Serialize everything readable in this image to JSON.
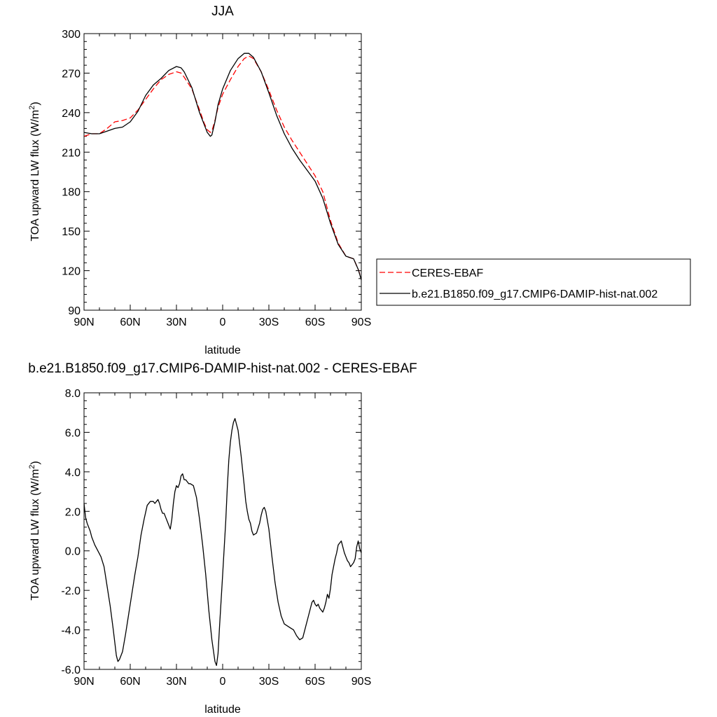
{
  "chart_data": [
    {
      "type": "line",
      "title": "JJA",
      "xlabel": "latitude",
      "ylabel": "TOA upward LW flux (W/m²)",
      "ylabel_main": "TOA upward LW flux (W/m",
      "ylabel_sup": "2",
      "ylabel_close": ")",
      "xlim": [
        90,
        -90
      ],
      "ylim": [
        90,
        300
      ],
      "x_ticks": [
        90,
        60,
        30,
        0,
        -30,
        -60,
        -90
      ],
      "x_tick_labels": [
        "90N",
        "60N",
        "30N",
        "0",
        "30S",
        "60S",
        "90S"
      ],
      "y_ticks": [
        90,
        120,
        150,
        180,
        210,
        240,
        270,
        300
      ],
      "y_tick_labels": [
        "90",
        "120",
        "150",
        "180",
        "210",
        "240",
        "270",
        "300"
      ],
      "legend_position": "right",
      "series": [
        {
          "name": "CERES-EBAF",
          "color": "#ff0000",
          "dash": "dashed",
          "x": [
            90,
            85,
            80,
            75,
            70,
            65,
            60,
            55,
            50,
            45,
            40,
            35,
            30,
            27,
            25,
            20,
            15,
            12,
            10,
            8,
            7,
            5,
            3,
            0,
            -5,
            -10,
            -14,
            -17,
            -20,
            -25,
            -30,
            -35,
            -40,
            -45,
            -50,
            -55,
            -60,
            -65,
            -70,
            -75,
            -80,
            -85,
            -88,
            -90
          ],
          "y": [
            222,
            224,
            224,
            228,
            233,
            234,
            236,
            242,
            250,
            258,
            265,
            269,
            271,
            270,
            267,
            258,
            242,
            232,
            227,
            225,
            226,
            234,
            244,
            254,
            265,
            275,
            281,
            283,
            281,
            271,
            257,
            242,
            229,
            219,
            210,
            201,
            192,
            180,
            158,
            141,
            131,
            129,
            121,
            114
          ]
        },
        {
          "name": "b.e21.B1850.f09_g17.CMIP6-DAMIP-hist-nat.002",
          "color": "#000000",
          "dash": "solid",
          "x": [
            90,
            85,
            80,
            75,
            70,
            65,
            60,
            55,
            50,
            45,
            40,
            35,
            30,
            27,
            25,
            20,
            15,
            12,
            10,
            8,
            7,
            5,
            3,
            0,
            -5,
            -10,
            -14,
            -17,
            -20,
            -25,
            -30,
            -35,
            -40,
            -45,
            -50,
            -55,
            -60,
            -65,
            -70,
            -75,
            -80,
            -85,
            -88,
            -90
          ],
          "y": [
            225,
            224,
            224,
            226,
            228,
            229,
            233,
            241,
            253,
            261,
            266,
            272,
            275,
            274,
            271,
            259,
            240,
            231,
            225,
            222,
            223,
            233,
            246,
            258,
            272,
            281,
            285,
            285,
            282,
            271,
            255,
            238,
            224,
            213,
            204,
            196,
            188,
            175,
            156,
            140,
            131,
            129,
            121,
            113
          ]
        }
      ]
    },
    {
      "type": "line",
      "title": "b.e21.B1850.f09_g17.CMIP6-DAMIP-hist-nat.002 - CERES-EBAF",
      "xlabel": "latitude",
      "ylabel": "TOA upward LW flux (W/m²)",
      "ylabel_main": "TOA upward LW flux (W/m",
      "ylabel_sup": "2",
      "ylabel_close": ")",
      "xlim": [
        90,
        -90
      ],
      "ylim": [
        -6,
        8
      ],
      "x_ticks": [
        90,
        60,
        30,
        0,
        -30,
        -60,
        -90
      ],
      "x_tick_labels": [
        "90N",
        "60N",
        "30N",
        "0",
        "30S",
        "60S",
        "90S"
      ],
      "y_ticks": [
        -6,
        -4,
        -2,
        0,
        2,
        4,
        6,
        8
      ],
      "y_tick_labels": [
        "-6.0",
        "-4.0",
        "-2.0",
        "0.0",
        "2.0",
        "4.0",
        "6.0",
        "8.0"
      ],
      "series": [
        {
          "color": "#000000",
          "dash": "solid",
          "x": [
            90,
            89,
            88,
            87,
            86,
            85,
            83,
            81,
            79,
            77,
            75,
            73,
            71,
            69,
            68,
            67,
            65,
            63,
            61,
            59,
            57,
            55,
            53,
            51,
            49,
            47,
            45,
            44,
            43,
            42,
            41,
            40,
            39,
            38,
            37,
            36,
            35,
            34,
            33,
            32,
            31,
            30,
            29,
            28,
            27,
            26,
            25,
            24,
            23,
            22,
            21,
            19,
            17,
            15,
            13,
            11,
            9,
            7,
            5,
            4,
            3,
            2,
            0,
            -2,
            -3,
            -4,
            -5,
            -6,
            -7,
            -8,
            -10,
            -12,
            -14,
            -15,
            -16,
            -17,
            -18,
            -19,
            -20,
            -22,
            -24,
            -25,
            -26,
            -27,
            -28,
            -30,
            -32,
            -34,
            -36,
            -38,
            -40,
            -42,
            -44,
            -46,
            -48,
            -50,
            -52,
            -54,
            -55,
            -56,
            -57,
            -58,
            -59,
            -60,
            -61,
            -62,
            -63,
            -64,
            -65,
            -66,
            -67,
            -68,
            -69,
            -70,
            -71,
            -72,
            -73,
            -74,
            -75,
            -76,
            -77,
            -78,
            -79,
            -80,
            -81,
            -82,
            -83,
            -84,
            -85,
            -86,
            -87,
            -88,
            -89,
            -90
          ],
          "y": [
            2.4,
            1.7,
            1.4,
            1.2,
            1.0,
            0.7,
            0.3,
            0.0,
            -0.3,
            -0.8,
            -1.8,
            -2.8,
            -4.0,
            -5.3,
            -5.6,
            -5.5,
            -5.1,
            -4.2,
            -3.2,
            -2.2,
            -1.2,
            -0.3,
            0.8,
            1.6,
            2.3,
            2.5,
            2.5,
            2.4,
            2.5,
            2.6,
            2.4,
            2.1,
            1.9,
            1.9,
            1.7,
            1.5,
            1.3,
            1.1,
            1.6,
            2.4,
            3.0,
            3.3,
            3.2,
            3.4,
            3.8,
            3.9,
            3.6,
            3.6,
            3.5,
            3.4,
            3.4,
            3.3,
            2.7,
            1.6,
            0.3,
            -1.2,
            -3.0,
            -4.5,
            -5.6,
            -5.8,
            -5.2,
            -3.8,
            -1.2,
            1.5,
            3.2,
            4.6,
            5.5,
            6.1,
            6.5,
            6.7,
            6.1,
            4.8,
            3.3,
            2.5,
            2.0,
            1.6,
            1.4,
            1.0,
            0.8,
            0.9,
            1.4,
            1.8,
            2.1,
            2.2,
            2.0,
            1.1,
            -0.3,
            -1.6,
            -2.6,
            -3.3,
            -3.7,
            -3.8,
            -3.9,
            -4.0,
            -4.3,
            -4.5,
            -4.4,
            -3.8,
            -3.5,
            -3.2,
            -2.9,
            -2.6,
            -2.5,
            -2.7,
            -2.8,
            -2.7,
            -2.9,
            -3.0,
            -3.1,
            -2.9,
            -2.6,
            -2.2,
            -2.4,
            -1.9,
            -1.2,
            -0.8,
            -0.4,
            -0.1,
            0.3,
            0.4,
            0.5,
            0.2,
            -0.1,
            -0.3,
            -0.5,
            -0.6,
            -0.8,
            -0.7,
            -0.6,
            -0.4,
            0.2,
            0.5,
            0.1,
            -0.1
          ]
        }
      ]
    }
  ]
}
